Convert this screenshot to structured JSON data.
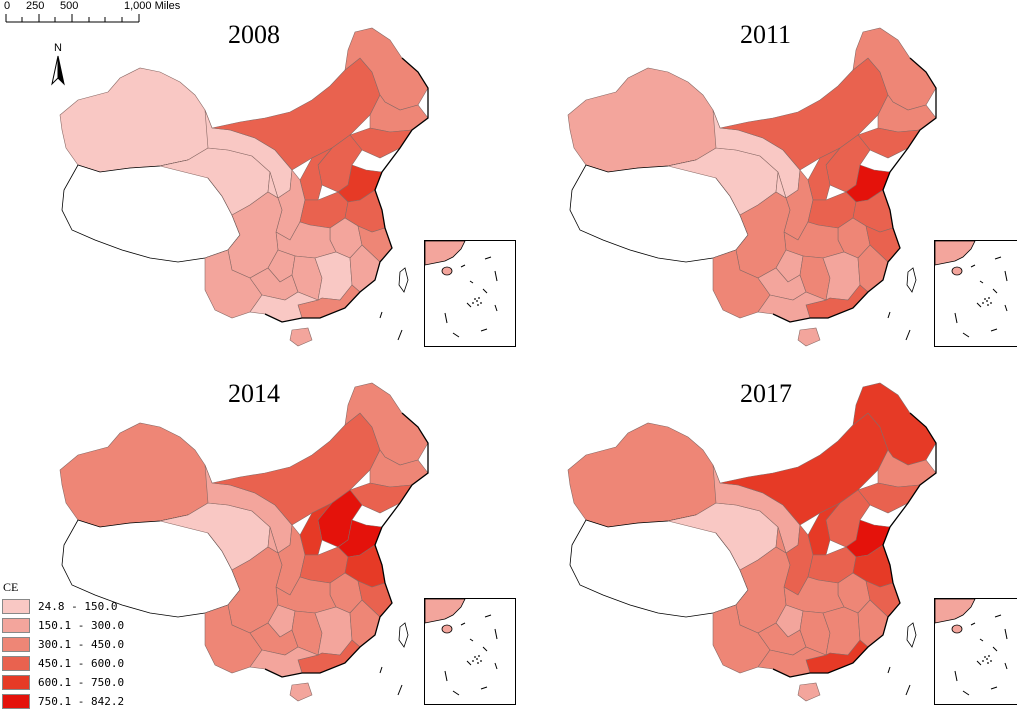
{
  "scale_bar": {
    "labels": [
      "0",
      "250",
      "500",
      "1,000 Miles"
    ]
  },
  "north_arrow": {
    "label": "N"
  },
  "legend": {
    "title": "CE",
    "classes": [
      {
        "range": "24.8 - 150.0",
        "color": "#f9c8c4"
      },
      {
        "range": "150.1 - 300.0",
        "color": "#f3a59c"
      },
      {
        "range": "300.1 - 450.0",
        "color": "#ee8676"
      },
      {
        "range": "450.1 - 600.0",
        "color": "#e9624f"
      },
      {
        "range": "600.1 - 750.0",
        "color": "#e63a26"
      },
      {
        "range": "750.1 - 842.2",
        "color": "#e4120b"
      }
    ]
  },
  "maps": [
    {
      "year": "2008",
      "class_levels": {
        "xinjiang": 0,
        "tibet": -1,
        "qinghai": 0,
        "gansu": 0,
        "inner_mongolia": 3,
        "heilongjiang": 2,
        "jilin": 2,
        "liaoning": 3,
        "hebei": 3,
        "shandong": 4,
        "shanxi": 3,
        "shaanxi": 1,
        "ningxia": 0,
        "henan": 3,
        "jiangsu": 3,
        "anhui": 1,
        "hubei": 1,
        "sichuan": 1,
        "chongqing": 1,
        "yunnan": 1,
        "guizhou": 1,
        "hunan": 1,
        "jiangxi": 0,
        "zhejiang": 2,
        "fujian": 1,
        "guangdong": 2,
        "guangxi": 0,
        "hainan": 1
      }
    },
    {
      "year": "2011",
      "class_levels": {
        "xinjiang": 1,
        "tibet": -1,
        "qinghai": 0,
        "gansu": 0,
        "inner_mongolia": 3,
        "heilongjiang": 2,
        "jilin": 2,
        "liaoning": 3,
        "hebei": 3,
        "shandong": 5,
        "shanxi": 3,
        "shaanxi": 2,
        "ningxia": 0,
        "henan": 3,
        "jiangsu": 3,
        "anhui": 2,
        "hubei": 2,
        "sichuan": 2,
        "chongqing": 1,
        "yunnan": 2,
        "guizhou": 1,
        "hunan": 2,
        "jiangxi": 1,
        "zhejiang": 3,
        "fujian": 2,
        "guangdong": 3,
        "guangxi": 1,
        "hainan": 1
      }
    },
    {
      "year": "2014",
      "class_levels": {
        "xinjiang": 2,
        "tibet": -1,
        "qinghai": 0,
        "gansu": 1,
        "inner_mongolia": 3,
        "heilongjiang": 2,
        "jilin": 2,
        "liaoning": 3,
        "hebei": 5,
        "shandong": 5,
        "shanxi": 4,
        "shaanxi": 2,
        "ningxia": 1,
        "henan": 3,
        "jiangsu": 4,
        "anhui": 2,
        "hubei": 2,
        "sichuan": 2,
        "chongqing": 1,
        "yunnan": 2,
        "guizhou": 2,
        "hunan": 2,
        "jiangxi": 1,
        "zhejiang": 3,
        "fujian": 2,
        "guangdong": 3,
        "guangxi": 1,
        "hainan": 1
      }
    },
    {
      "year": "2017",
      "class_levels": {
        "xinjiang": 2,
        "tibet": -1,
        "qinghai": 0,
        "gansu": 1,
        "inner_mongolia": 4,
        "heilongjiang": 4,
        "jilin": 2,
        "liaoning": 3,
        "hebei": 3,
        "shandong": 5,
        "shanxi": 4,
        "shaanxi": 3,
        "ningxia": 2,
        "henan": 3,
        "jiangsu": 4,
        "anhui": 2,
        "hubei": 2,
        "sichuan": 2,
        "chongqing": 1,
        "yunnan": 2,
        "guizhou": 2,
        "hunan": 2,
        "jiangxi": 2,
        "zhejiang": 3,
        "fujian": 2,
        "guangdong": 4,
        "guangxi": 2,
        "hainan": 1
      }
    }
  ]
}
